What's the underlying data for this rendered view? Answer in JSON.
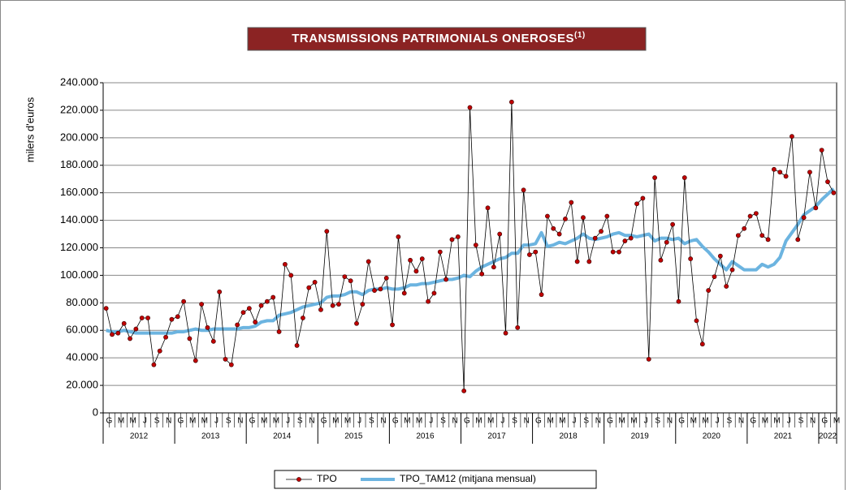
{
  "chart_data": {
    "type": "line",
    "title": "TRANSMISSIONS PATRIMONIALS ONEROSES",
    "title_superscript": "(1)",
    "y_label": "milers d'euros",
    "categories": [
      "G",
      null,
      "M",
      null,
      "M",
      null,
      "J",
      null,
      "S",
      null,
      "N",
      null,
      "G",
      null,
      "M",
      null,
      "M",
      null,
      "J",
      null,
      "S",
      null,
      "N",
      null,
      "G",
      null,
      "M",
      null,
      "M",
      null,
      "J",
      null,
      "S",
      null,
      "N",
      null,
      "G",
      null,
      "M",
      null,
      "M",
      null,
      "J",
      null,
      "S",
      null,
      "N",
      null,
      "G",
      null,
      "M",
      null,
      "M",
      null,
      "J",
      null,
      "S",
      null,
      "N",
      null,
      "G",
      null,
      "M",
      null,
      "M",
      null,
      "J",
      null,
      "S",
      null,
      "N",
      null,
      "G",
      null,
      "M",
      null,
      "M",
      null,
      "J",
      null,
      "S",
      null,
      "N",
      null,
      "G",
      null,
      "M",
      null,
      "M",
      null,
      "J",
      null,
      "S",
      null,
      "N",
      null,
      "G",
      null,
      "M",
      null,
      "M",
      null,
      "J",
      null,
      "S",
      null,
      "N",
      null,
      "G",
      null,
      "M",
      null,
      "M",
      null,
      "J",
      null,
      "S",
      null,
      "N",
      null,
      "G",
      null,
      "M"
    ],
    "years": [
      "2012",
      "2013",
      "2014",
      "2015",
      "2016",
      "2017",
      "2018",
      "2019",
      "2020",
      "2021",
      "2022"
    ],
    "series": [
      {
        "name": "TPO",
        "color": "#000000",
        "marker_color": "#c00000",
        "values": [
          76000,
          57000,
          58000,
          65000,
          54000,
          61000,
          69000,
          69000,
          35000,
          45000,
          55000,
          68000,
          70000,
          81000,
          54000,
          38000,
          79000,
          62000,
          52000,
          88000,
          39000,
          35000,
          64000,
          73000,
          76000,
          66000,
          78000,
          81000,
          84000,
          59000,
          108000,
          100000,
          49000,
          69000,
          91000,
          95000,
          75000,
          132000,
          78000,
          79000,
          99000,
          96000,
          65000,
          79000,
          110000,
          89000,
          90000,
          98000,
          64000,
          128000,
          87000,
          111000,
          103000,
          112000,
          81000,
          87000,
          117000,
          97000,
          126000,
          128000,
          16000,
          222000,
          122000,
          101000,
          149000,
          106000,
          130000,
          58000,
          226000,
          62000,
          162000,
          115000,
          117000,
          86000,
          143000,
          134000,
          130000,
          141000,
          153000,
          110000,
          142000,
          110000,
          127000,
          132000,
          143000,
          117000,
          117000,
          125000,
          127000,
          152000,
          156000,
          39000,
          171000,
          111000,
          124000,
          137000,
          81000,
          171000,
          112000,
          67000,
          50000,
          89000,
          99000,
          114000,
          92000,
          104000,
          129000,
          134000,
          143000,
          145000,
          129000,
          126000,
          177000,
          175000,
          172000,
          201000,
          126000,
          142000,
          175000,
          149000,
          191000,
          168000,
          160000
        ]
      },
      {
        "name": "TPO_TAM12 (mitjana mensual)",
        "color": "#6cb4e0",
        "values": [
          60000,
          59000,
          59000,
          60000,
          59000,
          58000,
          58000,
          58000,
          58000,
          58000,
          58000,
          58000,
          59000,
          59000,
          60000,
          61000,
          60000,
          60000,
          61000,
          61000,
          61000,
          61000,
          61000,
          62000,
          62000,
          63000,
          66000,
          67000,
          67000,
          71000,
          72000,
          73000,
          75000,
          77000,
          78000,
          79000,
          80000,
          84000,
          85000,
          85000,
          86000,
          88000,
          88000,
          86000,
          89000,
          90000,
          90000,
          91000,
          90000,
          90000,
          91000,
          93000,
          93000,
          94000,
          94000,
          95000,
          96000,
          97000,
          97000,
          98000,
          100000,
          99000,
          103000,
          106000,
          108000,
          110000,
          112000,
          113000,
          116000,
          116000,
          122000,
          122000,
          123000,
          131000,
          121000,
          122000,
          124000,
          123000,
          125000,
          127000,
          130000,
          127000,
          126000,
          127000,
          128000,
          130000,
          131000,
          129000,
          129000,
          128000,
          129000,
          130000,
          125000,
          127000,
          127000,
          126000,
          127000,
          123000,
          125000,
          126000,
          121000,
          117000,
          112000,
          108000,
          104000,
          110000,
          107000,
          104000,
          104000,
          104000,
          108000,
          106000,
          108000,
          113000,
          125000,
          131000,
          137000,
          144000,
          147000,
          150000,
          155000,
          159000,
          163000
        ]
      }
    ],
    "ylim": [
      0,
      240000
    ],
    "yticks": [
      0,
      {
        "value": 20000,
        "label": "20.000"
      },
      {
        "value": 40000,
        "label": "40.000"
      },
      {
        "value": 60000,
        "label": "60.000"
      },
      {
        "value": 80000,
        "label": "80.000"
      },
      {
        "value": 100000,
        "label": "100.000"
      },
      {
        "value": 120000,
        "label": "120.000"
      },
      {
        "value": 140000,
        "label": "140.000"
      },
      {
        "value": 160000,
        "label": "160.000"
      },
      {
        "value": 180000,
        "label": "180.000"
      },
      {
        "value": 200000,
        "label": "200.000"
      },
      {
        "value": 220000,
        "label": "220.000"
      },
      {
        "value": 240000,
        "label": "240.000"
      }
    ],
    "grid": true,
    "legend": "bottom"
  }
}
